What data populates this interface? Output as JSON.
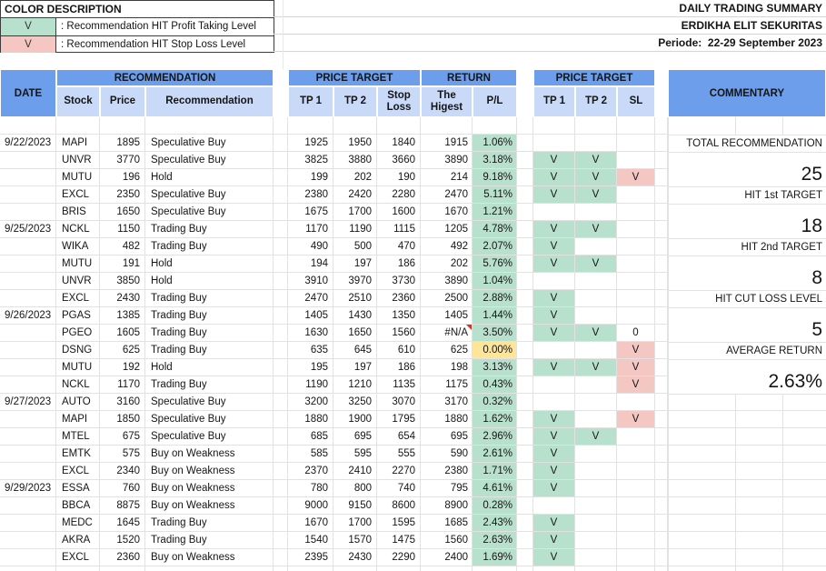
{
  "color_description": {
    "title": "COLOR DESCRIPTION",
    "items": [
      {
        "mark": "V",
        "label": ": Recommendation HIT Profit Taking Level"
      },
      {
        "mark": "V",
        "label": ": Recommendation HIT Stop Loss Level"
      }
    ]
  },
  "report_header": {
    "line1": "DAILY TRADING SUMMARY",
    "line2": "ERDIKHA ELIT SEKURITAS",
    "line3": "Periode:  22-29 September 2023"
  },
  "table_header": {
    "date": "DATE",
    "groups": {
      "recommendation": "RECOMMENDATION",
      "price_target": "PRICE TARGET",
      "return": "RETURN",
      "price_target2": "PRICE TARGET",
      "commentary": "COMMENTARY"
    },
    "sub": {
      "stock": "Stock",
      "price": "Price",
      "recommendation": "Recommendation",
      "tp1": "TP 1",
      "tp2": "TP 2",
      "stop_loss_1": "Stop",
      "stop_loss_2": "Loss",
      "highest_1": "The",
      "highest_2": "Higest",
      "pl": "P/L",
      "tp1b": "TP 1",
      "tp2b": "TP 2",
      "sl": "SL"
    }
  },
  "rows": [
    {
      "date": "9/22/2023",
      "stock": "MAPI",
      "price": "1895",
      "rec": "Speculative Buy",
      "tp1": "1925",
      "tp2": "1950",
      "stop": "1840",
      "high": "1915",
      "pl": "1.06%",
      "pls": "g",
      "h1": "",
      "h2": "",
      "sl": ""
    },
    {
      "date": "",
      "stock": "UNVR",
      "price": "3770",
      "rec": "Speculative Buy",
      "tp1": "3825",
      "tp2": "3880",
      "stop": "3660",
      "high": "3890",
      "pl": "3.18%",
      "pls": "g",
      "h1": "V",
      "h2": "V",
      "sl": ""
    },
    {
      "date": "",
      "stock": "MUTU",
      "price": "196",
      "rec": "Hold",
      "tp1": "199",
      "tp2": "202",
      "stop": "190",
      "high": "214",
      "pl": "9.18%",
      "pls": "g",
      "h1": "V",
      "h2": "V",
      "sl": "V"
    },
    {
      "date": "",
      "stock": "EXCL",
      "price": "2350",
      "rec": "Speculative Buy",
      "tp1": "2380",
      "tp2": "2420",
      "stop": "2280",
      "high": "2470",
      "pl": "5.11%",
      "pls": "g",
      "h1": "V",
      "h2": "V",
      "sl": ""
    },
    {
      "date": "",
      "stock": "BRIS",
      "price": "1650",
      "rec": "Speculative Buy",
      "tp1": "1675",
      "tp2": "1700",
      "stop": "1600",
      "high": "1670",
      "pl": "1.21%",
      "pls": "g",
      "h1": "",
      "h2": "",
      "sl": ""
    },
    {
      "date": "9/25/2023",
      "stock": "NCKL",
      "price": "1150",
      "rec": "Trading Buy",
      "tp1": "1170",
      "tp2": "1190",
      "stop": "1115",
      "high": "1205",
      "pl": "4.78%",
      "pls": "g",
      "h1": "V",
      "h2": "V",
      "sl": ""
    },
    {
      "date": "",
      "stock": "WIKA",
      "price": "482",
      "rec": "Trading Buy",
      "tp1": "490",
      "tp2": "500",
      "stop": "470",
      "high": "492",
      "pl": "2.07%",
      "pls": "g",
      "h1": "V",
      "h2": "",
      "sl": ""
    },
    {
      "date": "",
      "stock": "MUTU",
      "price": "191",
      "rec": "Hold",
      "tp1": "194",
      "tp2": "197",
      "stop": "186",
      "high": "202",
      "pl": "5.76%",
      "pls": "g",
      "h1": "V",
      "h2": "V",
      "sl": ""
    },
    {
      "date": "",
      "stock": "UNVR",
      "price": "3850",
      "rec": "Hold",
      "tp1": "3910",
      "tp2": "3970",
      "stop": "3730",
      "high": "3890",
      "pl": "1.04%",
      "pls": "g",
      "h1": "",
      "h2": "",
      "sl": ""
    },
    {
      "date": "",
      "stock": "EXCL",
      "price": "2430",
      "rec": "Trading Buy",
      "tp1": "2470",
      "tp2": "2510",
      "stop": "2360",
      "high": "2500",
      "pl": "2.88%",
      "pls": "g",
      "h1": "V",
      "h2": "",
      "sl": ""
    },
    {
      "date": "9/26/2023",
      "stock": "PGAS",
      "price": "1385",
      "rec": "Trading Buy",
      "tp1": "1405",
      "tp2": "1430",
      "stop": "1350",
      "high": "1405",
      "pl": "1.44%",
      "pls": "g",
      "h1": "V",
      "h2": "",
      "sl": ""
    },
    {
      "date": "",
      "stock": "PGEO",
      "price": "1605",
      "rec": "Trading Buy",
      "tp1": "1630",
      "tp2": "1650",
      "stop": "1560",
      "high": "#N/A",
      "note": true,
      "pl": "3.50%",
      "pls": "g",
      "h1": "V",
      "h2": "V",
      "sl": "0"
    },
    {
      "date": "",
      "stock": "DSNG",
      "price": "625",
      "rec": "Trading Buy",
      "tp1": "635",
      "tp2": "645",
      "stop": "610",
      "high": "625",
      "pl": "0.00%",
      "pls": "y",
      "h1": "",
      "h2": "",
      "sl": "V"
    },
    {
      "date": "",
      "stock": "MUTU",
      "price": "192",
      "rec": "Hold",
      "tp1": "195",
      "tp2": "197",
      "stop": "186",
      "high": "198",
      "pl": "3.13%",
      "pls": "g",
      "h1": "V",
      "h2": "V",
      "sl": "V"
    },
    {
      "date": "",
      "stock": "NCKL",
      "price": "1170",
      "rec": "Trading Buy",
      "tp1": "1190",
      "tp2": "1210",
      "stop": "1135",
      "high": "1175",
      "pl": "0.43%",
      "pls": "g",
      "h1": "",
      "h2": "",
      "sl": "V"
    },
    {
      "date": "9/27/2023",
      "stock": "AUTO",
      "price": "3160",
      "rec": "Speculative Buy",
      "tp1": "3200",
      "tp2": "3250",
      "stop": "3070",
      "high": "3170",
      "pl": "0.32%",
      "pls": "g",
      "h1": "",
      "h2": "",
      "sl": ""
    },
    {
      "date": "",
      "stock": "MAPI",
      "price": "1850",
      "rec": "Speculative Buy",
      "tp1": "1880",
      "tp2": "1900",
      "stop": "1795",
      "high": "1880",
      "pl": "1.62%",
      "pls": "g",
      "h1": "V",
      "h2": "",
      "sl": "V"
    },
    {
      "date": "",
      "stock": "MTEL",
      "price": "675",
      "rec": "Speculative Buy",
      "tp1": "685",
      "tp2": "695",
      "stop": "654",
      "high": "695",
      "pl": "2.96%",
      "pls": "g",
      "h1": "V",
      "h2": "V",
      "sl": ""
    },
    {
      "date": "",
      "stock": "EMTK",
      "price": "575",
      "rec": "Buy on Weakness",
      "tp1": "585",
      "tp2": "595",
      "stop": "555",
      "high": "590",
      "pl": "2.61%",
      "pls": "g",
      "h1": "V",
      "h2": "",
      "sl": ""
    },
    {
      "date": "",
      "stock": "EXCL",
      "price": "2340",
      "rec": "Buy on Weakness",
      "tp1": "2370",
      "tp2": "2410",
      "stop": "2270",
      "high": "2380",
      "pl": "1.71%",
      "pls": "g",
      "h1": "V",
      "h2": "",
      "sl": ""
    },
    {
      "date": "9/29/2023",
      "stock": "ESSA",
      "price": "760",
      "rec": "Buy on Weakness",
      "tp1": "780",
      "tp2": "800",
      "stop": "740",
      "high": "795",
      "pl": "4.61%",
      "pls": "g",
      "h1": "V",
      "h2": "",
      "sl": ""
    },
    {
      "date": "",
      "stock": "BBCA",
      "price": "8875",
      "rec": "Buy on Weakness",
      "tp1": "9000",
      "tp2": "9150",
      "stop": "8600",
      "high": "8900",
      "pl": "0.28%",
      "pls": "g",
      "h1": "",
      "h2": "",
      "sl": ""
    },
    {
      "date": "",
      "stock": "MEDC",
      "price": "1645",
      "rec": "Trading Buy",
      "tp1": "1670",
      "tp2": "1700",
      "stop": "1595",
      "high": "1685",
      "pl": "2.43%",
      "pls": "g",
      "h1": "V",
      "h2": "",
      "sl": ""
    },
    {
      "date": "",
      "stock": "AKRA",
      "price": "1520",
      "rec": "Trading Buy",
      "tp1": "1540",
      "tp2": "1570",
      "stop": "1475",
      "high": "1560",
      "pl": "2.63%",
      "pls": "g",
      "h1": "V",
      "h2": "",
      "sl": ""
    },
    {
      "date": "",
      "stock": "EXCL",
      "price": "2360",
      "rec": "Buy on Weakness",
      "tp1": "2395",
      "tp2": "2430",
      "stop": "2290",
      "high": "2400",
      "pl": "1.69%",
      "pls": "g",
      "h1": "V",
      "h2": "",
      "sl": ""
    }
  ],
  "summary": [
    {
      "label": "TOTAL RECOMMENDATION",
      "value": "25"
    },
    {
      "label": "HIT 1st TARGET",
      "value": "18"
    },
    {
      "label": "HIT 2nd TARGET",
      "value": "8"
    },
    {
      "label": "HIT CUT LOSS LEVEL",
      "value": "5"
    },
    {
      "label": "AVERAGE RETURN",
      "value": "2.63%"
    }
  ],
  "colors": {
    "header_blue": "#6d9eeb",
    "subheader_blue": "#c9daf8",
    "hit_green": "#b7e1cd",
    "stop_red": "#f4c7c3",
    "neutral_yellow": "#ffe599"
  }
}
